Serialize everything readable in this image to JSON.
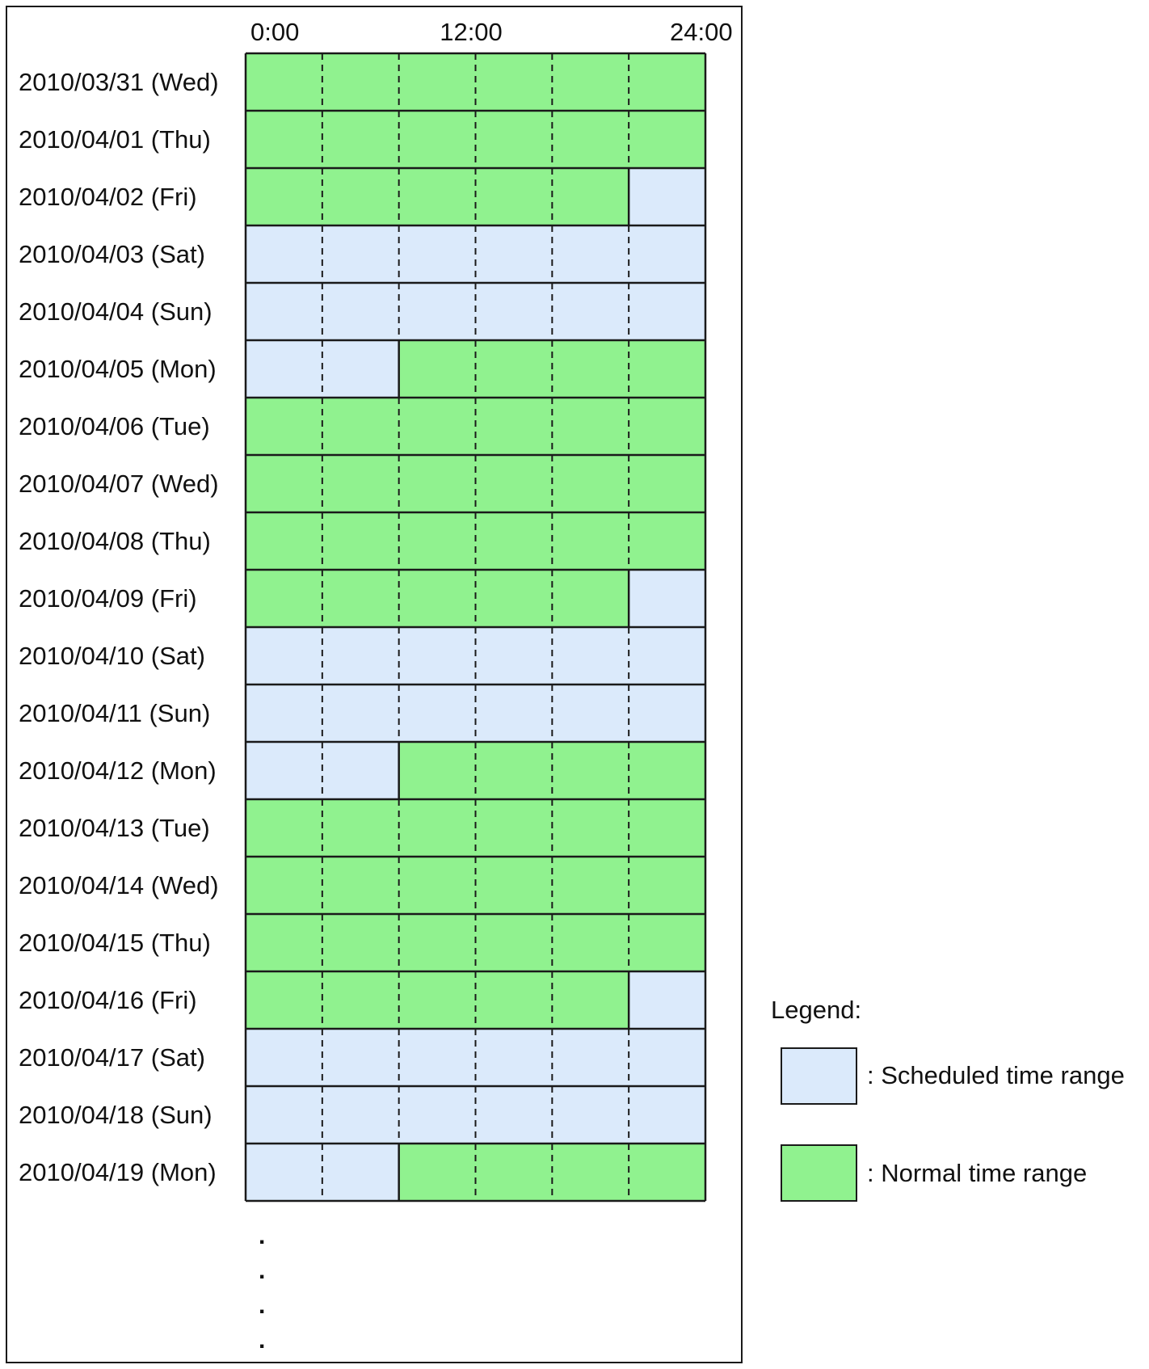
{
  "time_axis": {
    "labels": [
      "0:00",
      "12:00",
      "24:00"
    ],
    "label_hours": [
      0,
      12,
      24
    ],
    "divisions_hours": [
      4,
      8,
      12,
      16,
      20
    ]
  },
  "colors": {
    "scheduled": "#dbeafb",
    "normal": "#90f28f",
    "line": "#1a1a1a"
  },
  "rows": [
    {
      "date": "2010/03/31 (Wed)",
      "scheduled_hours": []
    },
    {
      "date": "2010/04/01 (Thu)",
      "scheduled_hours": []
    },
    {
      "date": "2010/04/02 (Fri)",
      "scheduled_hours": [
        [
          20,
          24
        ]
      ]
    },
    {
      "date": "2010/04/03 (Sat)",
      "scheduled_hours": [
        [
          0,
          24
        ]
      ]
    },
    {
      "date": "2010/04/04 (Sun)",
      "scheduled_hours": [
        [
          0,
          24
        ]
      ]
    },
    {
      "date": "2010/04/05 (Mon)",
      "scheduled_hours": [
        [
          0,
          8
        ]
      ]
    },
    {
      "date": "2010/04/06 (Tue)",
      "scheduled_hours": []
    },
    {
      "date": "2010/04/07 (Wed)",
      "scheduled_hours": []
    },
    {
      "date": "2010/04/08 (Thu)",
      "scheduled_hours": []
    },
    {
      "date": "2010/04/09 (Fri)",
      "scheduled_hours": [
        [
          20,
          24
        ]
      ]
    },
    {
      "date": "2010/04/10 (Sat)",
      "scheduled_hours": [
        [
          0,
          24
        ]
      ]
    },
    {
      "date": "2010/04/11 (Sun)",
      "scheduled_hours": [
        [
          0,
          24
        ]
      ]
    },
    {
      "date": "2010/04/12 (Mon)",
      "scheduled_hours": [
        [
          0,
          8
        ]
      ]
    },
    {
      "date": "2010/04/13 (Tue)",
      "scheduled_hours": []
    },
    {
      "date": "2010/04/14 (Wed)",
      "scheduled_hours": []
    },
    {
      "date": "2010/04/15 (Thu)",
      "scheduled_hours": []
    },
    {
      "date": "2010/04/16 (Fri)",
      "scheduled_hours": [
        [
          20,
          24
        ]
      ]
    },
    {
      "date": "2010/04/17 (Sat)",
      "scheduled_hours": [
        [
          0,
          24
        ]
      ]
    },
    {
      "date": "2010/04/18 (Sun)",
      "scheduled_hours": [
        [
          0,
          24
        ]
      ]
    },
    {
      "date": "2010/04/19 (Mon)",
      "scheduled_hours": [
        [
          0,
          8
        ]
      ]
    }
  ],
  "continuation": ".\n.\n.\n.",
  "legend": {
    "title": "Legend:",
    "scheduled_label": ": Scheduled time range",
    "normal_label": ": Normal time range"
  }
}
